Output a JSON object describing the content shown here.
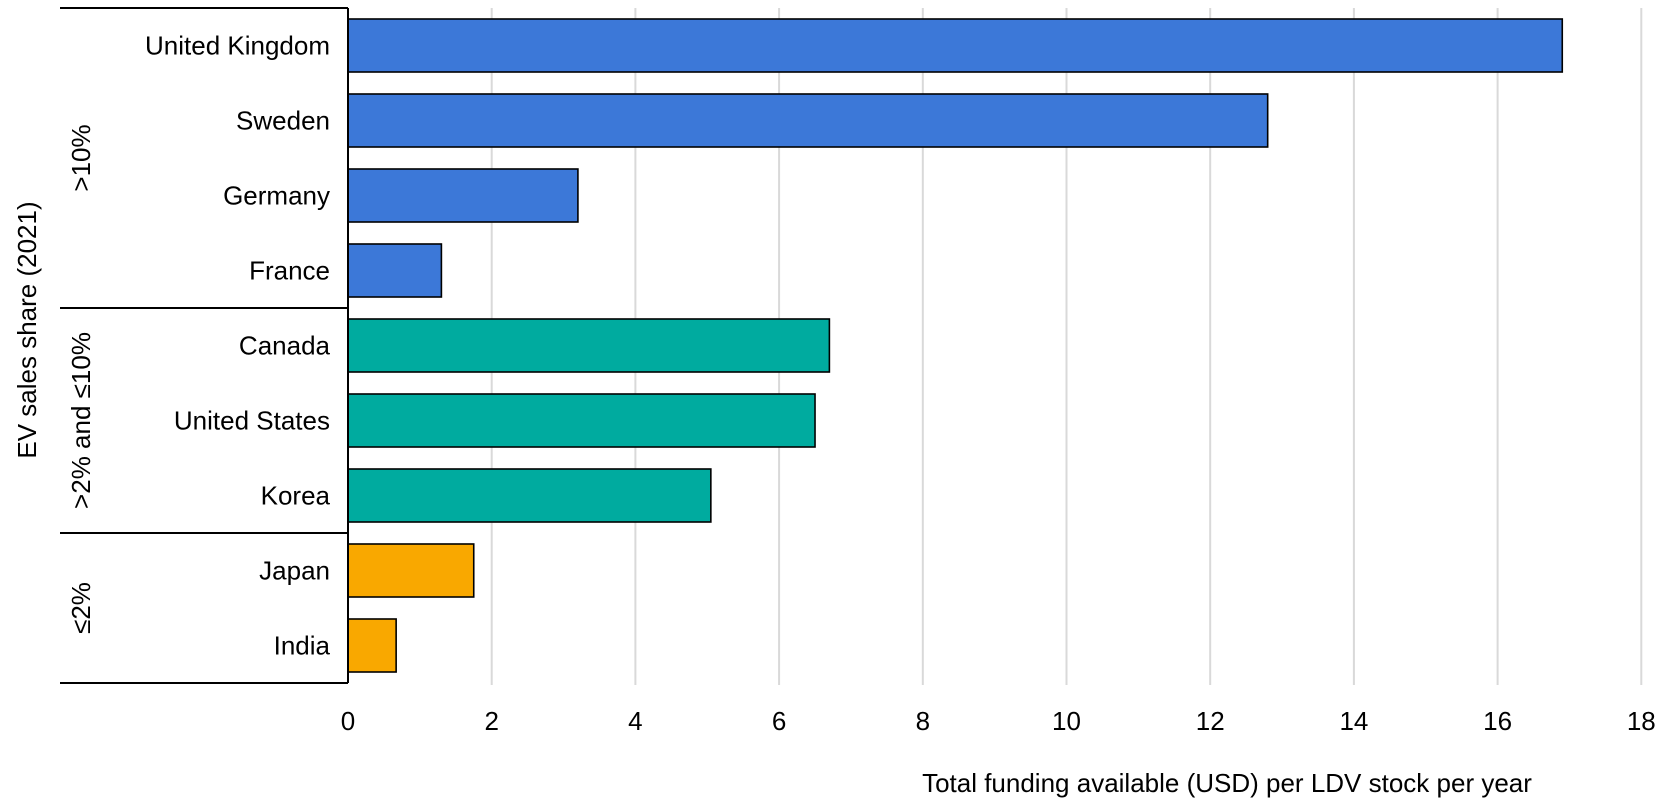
{
  "chart_data": {
    "type": "bar",
    "orientation": "horizontal",
    "xlabel": "Total funding available (USD) per LDV stock per year",
    "ylabel": "EV sales share (2021)",
    "xlim": [
      0,
      18
    ],
    "xticks": [
      0,
      2,
      4,
      6,
      8,
      10,
      12,
      14,
      16,
      18
    ],
    "grid": true,
    "groups": [
      {
        "label": ">10%",
        "color": "#3c78d8",
        "categories": [
          "United Kingdom",
          "Sweden",
          "Germany",
          "France"
        ],
        "values": [
          16.9,
          12.8,
          3.2,
          1.3
        ]
      },
      {
        "label": ">2% and ≤10%",
        "color": "#00ab9f",
        "categories": [
          "Canada",
          "United States",
          "Korea"
        ],
        "values": [
          6.7,
          6.5,
          5.05
        ]
      },
      {
        "label": "≤2%",
        "color": "#f9a800",
        "categories": [
          "Japan",
          "India"
        ],
        "values": [
          1.75,
          0.67
        ]
      }
    ]
  }
}
